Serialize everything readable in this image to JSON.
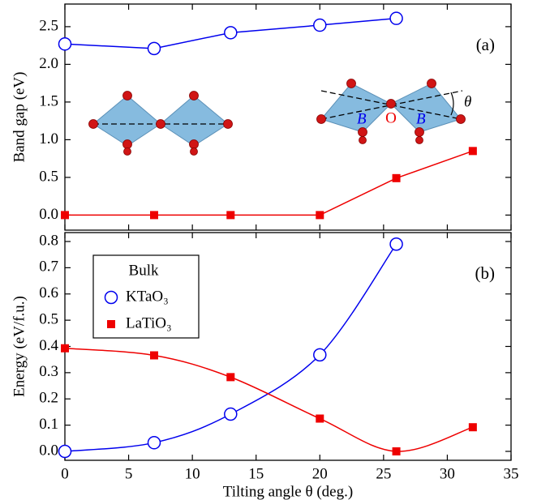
{
  "chart_data": [
    {
      "type": "line",
      "panel_label": "(a)",
      "ylabel": "Band gap (eV)",
      "x": [
        0,
        7,
        13,
        20,
        26,
        32
      ],
      "series": [
        {
          "name": "KTaO₃",
          "color": "#0000ee",
          "marker": "circle",
          "values": [
            2.27,
            2.21,
            2.42,
            2.52,
            2.61,
            null
          ]
        },
        {
          "name": "LaTiO₃",
          "color": "#ee0000",
          "marker": "square",
          "values": [
            0,
            0,
            0,
            0,
            0.49,
            0.85
          ]
        }
      ],
      "smooth": false,
      "legend": false,
      "xlim": [
        0,
        35
      ],
      "xticks": [
        0,
        5,
        10,
        15,
        20,
        25,
        30,
        35
      ],
      "xtick_labels": false,
      "ylim": [
        -0.2,
        2.8
      ],
      "yticks": [
        {
          "value": 0,
          "label": "0.0"
        },
        {
          "value": 0.5,
          "label": "0.5"
        },
        {
          "value": 1,
          "label": "1.0"
        },
        {
          "value": 1.5,
          "label": "1.5"
        },
        {
          "value": 2,
          "label": "2.0"
        },
        {
          "value": 2.5,
          "label": "2.5"
        }
      ],
      "inset_labels": [
        "B",
        "O",
        "B",
        "θ"
      ]
    },
    {
      "type": "line",
      "panel_label": "(b)",
      "ylabel": "Energy (eV/f.u.)",
      "xlabel": "Tilting angle θ (deg.)",
      "x": [
        0,
        7,
        13,
        20,
        26,
        32
      ],
      "series": [
        {
          "name": "KTaO₃",
          "color": "#0000ee",
          "marker": "circle",
          "values": [
            0,
            0.033,
            0.142,
            0.368,
            0.79,
            null
          ]
        },
        {
          "name": "LaTiO₃",
          "color": "#ee0000",
          "marker": "square",
          "values": [
            0.393,
            0.366,
            0.283,
            0.125,
            0,
            0.092
          ]
        }
      ],
      "smooth": true,
      "legend": "upper left",
      "legend_title": "Bulk",
      "xlim": [
        0,
        35
      ],
      "xticks": [
        0,
        5,
        10,
        15,
        20,
        25,
        30,
        35
      ],
      "xtick_labels": true,
      "ylim": [
        -0.034,
        0.834
      ],
      "yticks": [
        {
          "value": 0,
          "label": "0.0"
        },
        {
          "value": 0.1,
          "label": "0.1"
        },
        {
          "value": 0.2,
          "label": "0.2"
        },
        {
          "value": 0.3,
          "label": "0.3"
        },
        {
          "value": 0.4,
          "label": "0.4"
        },
        {
          "value": 0.5,
          "label": "0.5"
        },
        {
          "value": 0.6,
          "label": "0.6"
        },
        {
          "value": 0.7,
          "label": "0.7"
        },
        {
          "value": 0.8,
          "label": "0.8"
        }
      ]
    }
  ]
}
